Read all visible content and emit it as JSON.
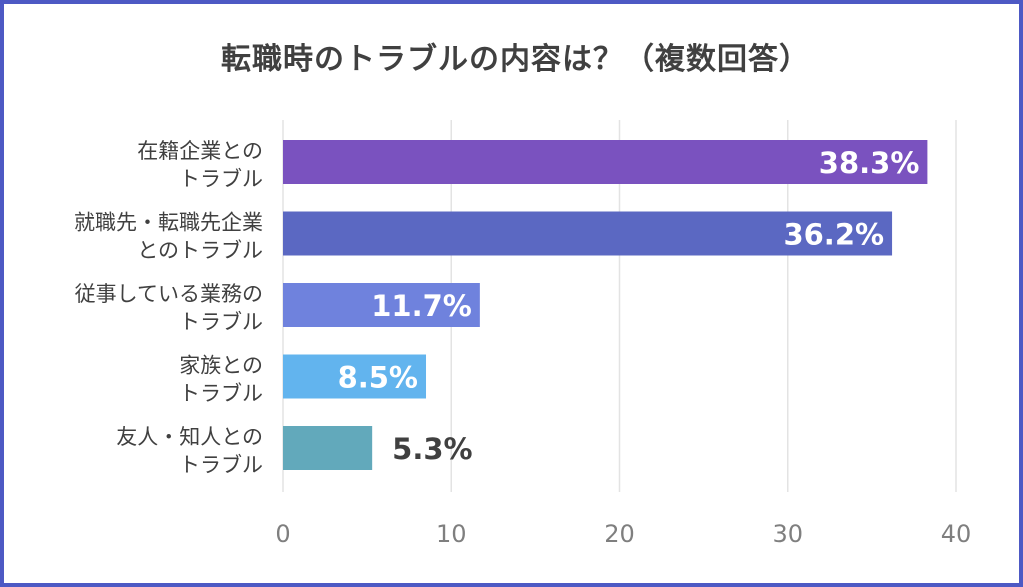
{
  "chart_data": {
    "type": "bar",
    "orientation": "horizontal",
    "title": "転職時のトラブルの内容は？（複数回答）",
    "categories": [
      [
        "在籍企業との",
        "トラブル"
      ],
      [
        "就職先・転職先企業",
        "とのトラブル"
      ],
      [
        "従事している業務の",
        "トラブル"
      ],
      [
        "家族との",
        "トラブル"
      ],
      [
        "友人・知人との",
        "トラブル"
      ]
    ],
    "values": [
      38.3,
      36.2,
      11.7,
      8.5,
      5.3
    ],
    "value_labels": [
      "38.3%",
      "36.2%",
      "11.7%",
      "8.5%",
      "5.3%"
    ],
    "colors": [
      "#7a52bf",
      "#5b68c2",
      "#6f82dd",
      "#62b4ee",
      "#62a9bb"
    ],
    "label_inside": [
      true,
      true,
      true,
      true,
      false
    ],
    "xlim": [
      0,
      40
    ],
    "xticks": [
      0,
      10,
      20,
      30,
      40
    ],
    "grid": true,
    "gridline_color": "#e3e3e3",
    "outside_label_color": "#404040"
  }
}
